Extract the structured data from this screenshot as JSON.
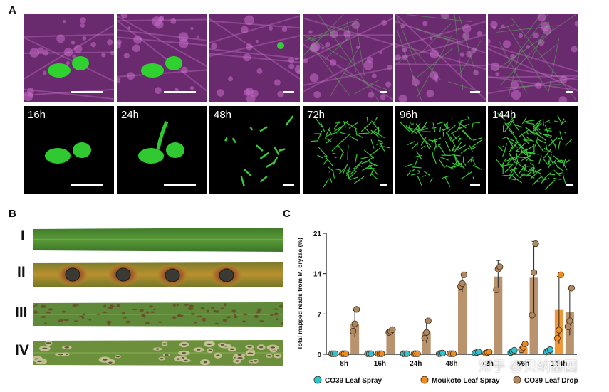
{
  "panel_a": {
    "letter": "A",
    "timepoints": [
      "16h",
      "24h",
      "48h",
      "72h",
      "96h",
      "144h"
    ]
  },
  "panel_b": {
    "letter": "B",
    "leaves": [
      {
        "label": "I",
        "color": "#111111"
      },
      {
        "label": "II",
        "color": "#9b6b3a"
      },
      {
        "label": "III",
        "color": "#35c4d6"
      },
      {
        "label": "IV",
        "color": "#e88a2a"
      }
    ]
  },
  "panel_c": {
    "letter": "C",
    "chart_data": {
      "type": "bar",
      "categories": [
        "8h",
        "16h",
        "24h",
        "48h",
        "72h",
        "96h",
        "144h"
      ],
      "ylabel": "Total mapped reads from M. oryzae (%)",
      "ylim": [
        0,
        21
      ],
      "yticks": [
        "0",
        "7",
        "14",
        "21"
      ],
      "series": [
        {
          "name": "CO39 Leaf Spray",
          "color": "#2ec4d1",
          "values": [
            0.1,
            0.1,
            0.1,
            0.15,
            0.3,
            0.5,
            0.6
          ],
          "errors": [
            0,
            0,
            0,
            0,
            0,
            0.1,
            0.15
          ],
          "points": [
            [
              0.1,
              0.1,
              0.1
            ],
            [
              0.1,
              0.1,
              0.1
            ],
            [
              0.1,
              0.1,
              0.1
            ],
            [
              0.1,
              0.15,
              0.2
            ],
            [
              0.2,
              0.3,
              0.4
            ],
            [
              0.3,
              0.5,
              0.7
            ],
            [
              0.4,
              0.6,
              0.8
            ]
          ]
        },
        {
          "name": "Moukoto Leaf Spray",
          "color": "#ee8c22",
          "values": [
            0.1,
            0.1,
            0.1,
            0.1,
            0.3,
            1.2,
            7.7
          ],
          "errors": [
            0,
            0,
            0,
            0,
            0,
            0.5,
            5.8
          ],
          "points": [
            [
              0.1,
              0.1,
              0.1
            ],
            [
              0.1,
              0.1,
              0.1
            ],
            [
              0.1,
              0.1,
              0.1
            ],
            [
              0.1,
              0.1,
              0.1
            ],
            [
              0.2,
              0.3,
              0.4
            ],
            [
              0.8,
              1.2,
              1.8
            ],
            [
              2.8,
              4.2,
              13.8
            ]
          ]
        },
        {
          "name": "CO39 Leaf Drop",
          "color": "#b0875e",
          "values": [
            5.3,
            4.0,
            3.8,
            12.3,
            13.5,
            13.3,
            7.3
          ],
          "errors": [
            2.3,
            0.3,
            1.8,
            1.5,
            2.8,
            6.3,
            4.0
          ],
          "points": [
            [
              4.0,
              5.3,
              7.8
            ],
            [
              3.8,
              4.0,
              4.3
            ],
            [
              2.8,
              3.8,
              5.8
            ],
            [
              11.8,
              12.3,
              13.8
            ],
            [
              11.2,
              14.8,
              15.2
            ],
            [
              6.8,
              14.2,
              19.2
            ],
            [
              4.8,
              5.8,
              11.5
            ]
          ]
        }
      ]
    }
  },
  "watermark": "知乎 @贝纳基因"
}
